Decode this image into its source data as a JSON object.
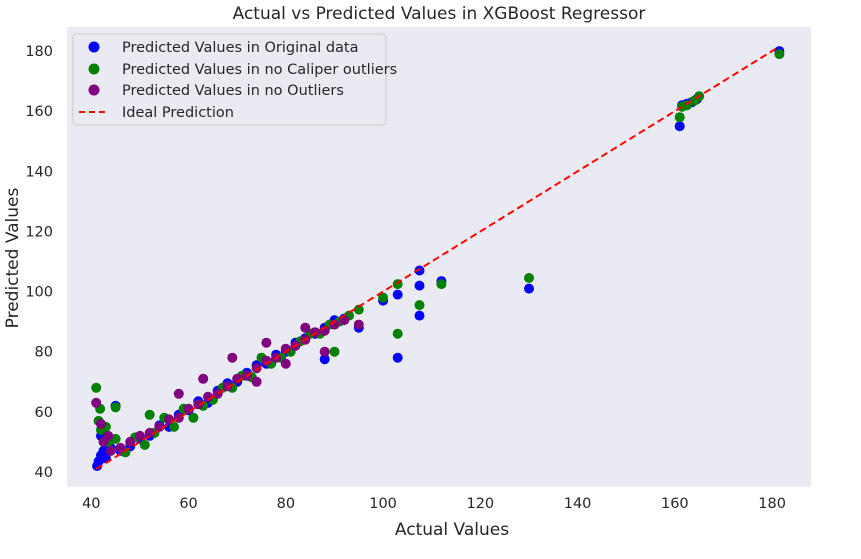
{
  "chart_data": {
    "type": "scatter",
    "title": "Actual vs Predicted Values in XGBoost Regressor",
    "xlabel": "Actual Values",
    "ylabel": "Predicted Values",
    "xlim": [
      35,
      188
    ],
    "ylim": [
      35,
      188
    ],
    "grid": false,
    "legend_position": "top-left",
    "xticks": [
      40,
      60,
      80,
      100,
      120,
      140,
      160,
      180
    ],
    "yticks": [
      40,
      60,
      80,
      100,
      120,
      140,
      160,
      180
    ],
    "series": [
      {
        "name": "Predicted Values in Original data",
        "color": "#0000ff",
        "points": [
          [
            41.2,
            42.0
          ],
          [
            41.5,
            43.5
          ],
          [
            42.0,
            45.5
          ],
          [
            42.5,
            47.0
          ],
          [
            42.0,
            52.0
          ],
          [
            43.0,
            44.5
          ],
          [
            45.0,
            62.0
          ],
          [
            44.0,
            48.0
          ],
          [
            46.0,
            47.0
          ],
          [
            48.0,
            48.5
          ],
          [
            50.0,
            51.0
          ],
          [
            52.0,
            52.0
          ],
          [
            54.0,
            55.5
          ],
          [
            56.0,
            55.0
          ],
          [
            58.0,
            59.0
          ],
          [
            60.0,
            60.5
          ],
          [
            62.0,
            63.5
          ],
          [
            64.0,
            63.0
          ],
          [
            66.0,
            67.0
          ],
          [
            68.0,
            69.5
          ],
          [
            70.0,
            70.0
          ],
          [
            72.0,
            73.0
          ],
          [
            74.0,
            75.5
          ],
          [
            76.0,
            76.0
          ],
          [
            78.0,
            79.0
          ],
          [
            80.0,
            80.0
          ],
          [
            82.0,
            83.0
          ],
          [
            84.0,
            84.5
          ],
          [
            86.0,
            86.0
          ],
          [
            88.0,
            88.0
          ],
          [
            90.0,
            90.5
          ],
          [
            92.0,
            91.0
          ],
          [
            95.0,
            88.0
          ],
          [
            88.0,
            77.5
          ],
          [
            100.0,
            97.0
          ],
          [
            103.0,
            99.0
          ],
          [
            103.0,
            78.0
          ],
          [
            107.5,
            107.0
          ],
          [
            107.5,
            102.0
          ],
          [
            107.5,
            92.0
          ],
          [
            112.0,
            103.5
          ],
          [
            130.0,
            101.0
          ],
          [
            161.0,
            155.0
          ],
          [
            161.5,
            162.0
          ],
          [
            162.5,
            162.5
          ],
          [
            163.5,
            163.0
          ],
          [
            164.5,
            164.0
          ],
          [
            181.5,
            180.0
          ]
        ]
      },
      {
        "name": "Predicted Values in no Caliper outliers",
        "color": "#008000",
        "points": [
          [
            41.0,
            68.0
          ],
          [
            41.8,
            61.0
          ],
          [
            41.5,
            57.0
          ],
          [
            42.0,
            54.0
          ],
          [
            43.0,
            55.0
          ],
          [
            43.5,
            50.0
          ],
          [
            45.0,
            61.5
          ],
          [
            45.0,
            51.0
          ],
          [
            47.0,
            46.5
          ],
          [
            49.0,
            51.5
          ],
          [
            51.0,
            49.0
          ],
          [
            52.0,
            59.0
          ],
          [
            53.0,
            53.0
          ],
          [
            55.0,
            58.0
          ],
          [
            57.0,
            55.0
          ],
          [
            59.0,
            61.0
          ],
          [
            61.0,
            58.0
          ],
          [
            63.0,
            62.0
          ],
          [
            65.0,
            64.0
          ],
          [
            67.0,
            68.0
          ],
          [
            69.0,
            68.0
          ],
          [
            71.0,
            72.0
          ],
          [
            73.0,
            71.5
          ],
          [
            75.0,
            78.0
          ],
          [
            77.0,
            76.0
          ],
          [
            79.0,
            78.0
          ],
          [
            81.0,
            80.0
          ],
          [
            83.0,
            83.5
          ],
          [
            85.0,
            86.0
          ],
          [
            87.0,
            86.0
          ],
          [
            89.0,
            89.0
          ],
          [
            91.0,
            90.0
          ],
          [
            93.0,
            92.0
          ],
          [
            95.0,
            94.0
          ],
          [
            90.0,
            80.0
          ],
          [
            100.0,
            98.0
          ],
          [
            103.0,
            102.5
          ],
          [
            103.0,
            86.0
          ],
          [
            107.5,
            95.5
          ],
          [
            112.0,
            102.5
          ],
          [
            130.0,
            104.5
          ],
          [
            161.0,
            158.0
          ],
          [
            161.5,
            161.5
          ],
          [
            162.5,
            162.0
          ],
          [
            164.0,
            163.5
          ],
          [
            165.0,
            165.0
          ],
          [
            181.5,
            179.0
          ]
        ]
      },
      {
        "name": "Predicted Values in no Outliers",
        "color": "#800080",
        "points": [
          [
            41.0,
            63.0
          ],
          [
            42.0,
            56.0
          ],
          [
            42.5,
            50.0
          ],
          [
            43.5,
            52.0
          ],
          [
            44.0,
            47.0
          ],
          [
            46.0,
            48.0
          ],
          [
            48.0,
            50.0
          ],
          [
            50.0,
            52.0
          ],
          [
            52.0,
            53.0
          ],
          [
            54.0,
            55.0
          ],
          [
            56.0,
            57.5
          ],
          [
            58.0,
            58.0
          ],
          [
            60.0,
            61.0
          ],
          [
            62.0,
            62.5
          ],
          [
            64.0,
            65.0
          ],
          [
            66.0,
            66.0
          ],
          [
            68.0,
            68.5
          ],
          [
            70.0,
            71.0
          ],
          [
            72.0,
            72.0
          ],
          [
            74.0,
            74.5
          ],
          [
            76.0,
            77.0
          ],
          [
            78.0,
            78.0
          ],
          [
            80.0,
            81.0
          ],
          [
            82.0,
            82.0
          ],
          [
            84.0,
            84.0
          ],
          [
            86.0,
            86.5
          ],
          [
            88.0,
            87.0
          ],
          [
            90.0,
            89.0
          ],
          [
            92.0,
            90.5
          ],
          [
            95.0,
            89.0
          ],
          [
            69.0,
            78.0
          ],
          [
            76.0,
            83.0
          ],
          [
            84.0,
            88.0
          ],
          [
            58.0,
            66.0
          ],
          [
            63.0,
            71.0
          ],
          [
            88.0,
            80.0
          ],
          [
            74.0,
            70.0
          ],
          [
            80.0,
            76.0
          ]
        ]
      }
    ],
    "ideal_line": {
      "name": "Ideal Prediction",
      "color": "#ff0000",
      "style": "dashed",
      "from": [
        41.0,
        41.0
      ],
      "to": [
        181.5,
        181.5
      ]
    }
  }
}
